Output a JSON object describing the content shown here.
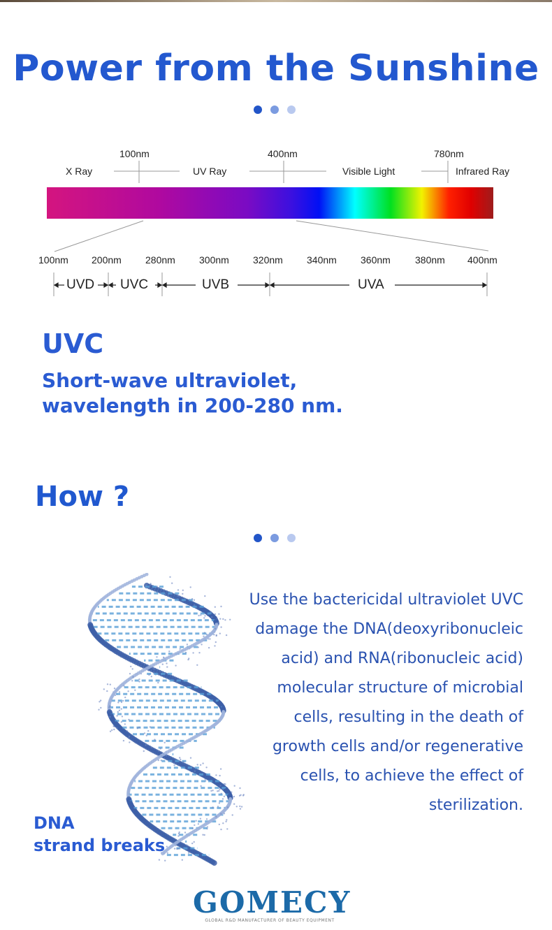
{
  "title": "Power from the Sunshine",
  "colors": {
    "accent": "#2358cf",
    "dot1": "#2255c8",
    "dot2": "#7b9be0",
    "dot3": "#b9c9ef",
    "logo": "#1c6aa8"
  },
  "spectrum": {
    "top_ticks": [
      "100nm",
      "400nm",
      "780nm"
    ],
    "regions": [
      "X Ray",
      "UV Ray",
      "Visible Light",
      "Infrared Ray"
    ],
    "bottom_ticks": [
      "100nm",
      "200nm",
      "280nm",
      "300nm",
      "320nm",
      "340nm",
      "360nm",
      "380nm",
      "400nm"
    ],
    "bands": [
      "UVD",
      "UVC",
      "UVB",
      "UVA"
    ]
  },
  "uvc": {
    "heading": "UVC",
    "line1": "Short-wave ultraviolet,",
    "line2": "wavelength in 200-280 nm."
  },
  "how": {
    "heading": "How ?",
    "lines": [
      "Use the bactericidal ultraviolet UVC",
      "damage the DNA(deoxyribonucleic",
      "acid) and RNA(ribonucleic acid)",
      "molecular structure of microbial",
      "cells, resulting in the death of",
      "growth cells and/or regenerative",
      "cells, to achieve the effect of",
      "sterilization."
    ]
  },
  "dna": {
    "line1": "DNA",
    "line2": "strand breaks"
  },
  "logo": {
    "name": "GOMECY",
    "tagline": "GLOBAL R&D MANUFACTURER OF BEAUTY EQUIPMENT"
  }
}
